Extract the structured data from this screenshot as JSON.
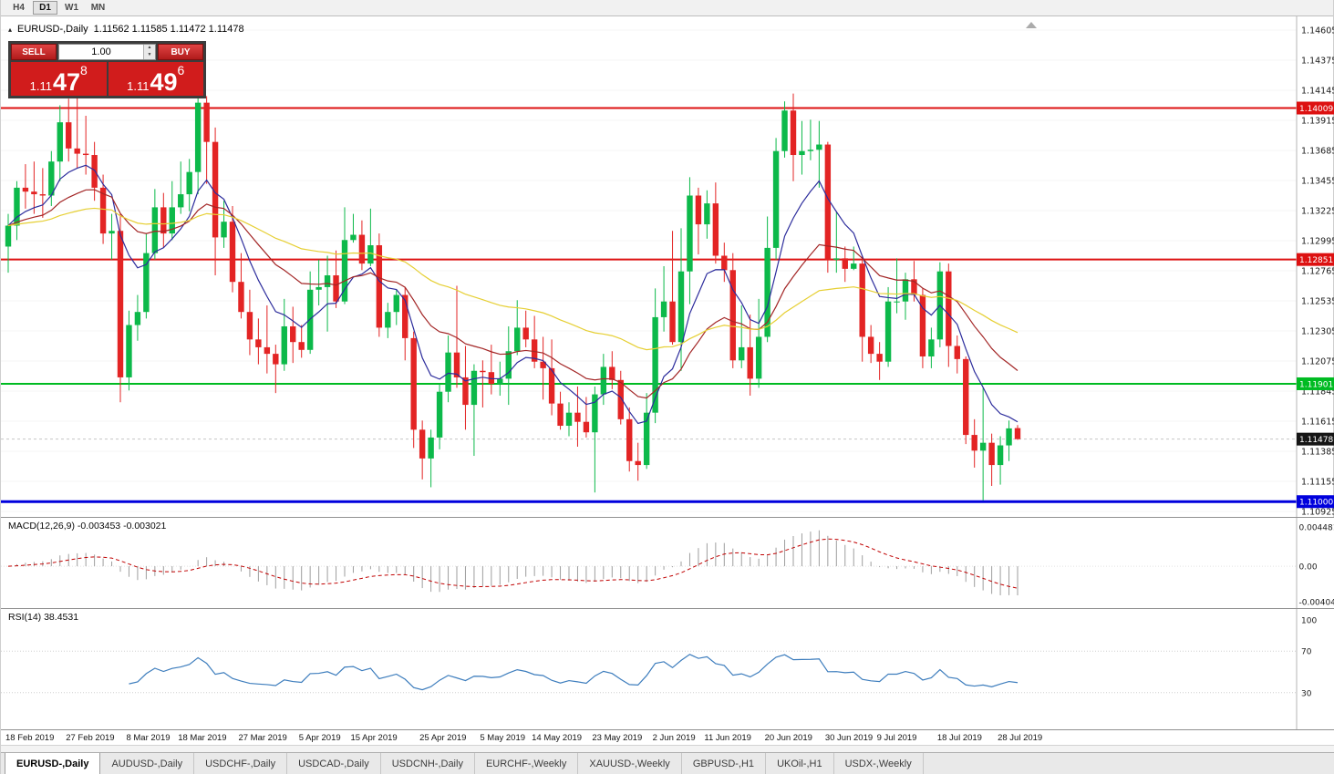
{
  "toolbar": {
    "timeframes": [
      {
        "label": "H4",
        "active": false
      },
      {
        "label": "D1",
        "active": true
      },
      {
        "label": "W1",
        "active": false
      },
      {
        "label": "MN",
        "active": false
      }
    ]
  },
  "icons": {
    "collapse_arrow": "▴",
    "spinner_up": "▲",
    "spinner_down": "▼"
  },
  "chart": {
    "symbol_title": "EURUSD-,Daily",
    "ohlc_readout": "1.11562 1.11585 1.11472 1.11478",
    "trade_panel": {
      "sell_label": "SELL",
      "buy_label": "BUY",
      "volume": "1.00",
      "sell_price": {
        "prefix": "1.11",
        "big": "47",
        "sup": "8"
      },
      "buy_price": {
        "prefix": "1.11",
        "big": "49",
        "sup": "6"
      }
    },
    "y_axis_labels": [
      "1.14605",
      "1.14375",
      "1.14145",
      "1.13915",
      "1.13685",
      "1.13455",
      "1.13225",
      "1.12995",
      "1.12765",
      "1.12535",
      "1.12305",
      "1.12075",
      "1.11845",
      "1.11615",
      "1.11385",
      "1.11155",
      "1.10925"
    ],
    "x_axis_labels": [
      {
        "label": "18 Feb 2019",
        "index": 0
      },
      {
        "label": "27 Feb 2019",
        "index": 7
      },
      {
        "label": "8 Mar 2019",
        "index": 14
      },
      {
        "label": "18 Mar 2019",
        "index": 20
      },
      {
        "label": "27 Mar 2019",
        "index": 27
      },
      {
        "label": "5 Apr 2019",
        "index": 34
      },
      {
        "label": "15 Apr 2019",
        "index": 40
      },
      {
        "label": "25 Apr 2019",
        "index": 48
      },
      {
        "label": "5 May 2019",
        "index": 55
      },
      {
        "label": "14 May 2019",
        "index": 61
      },
      {
        "label": "23 May 2019",
        "index": 68
      },
      {
        "label": "2 Jun 2019",
        "index": 75
      },
      {
        "label": "11 Jun 2019",
        "index": 81
      },
      {
        "label": "20 Jun 2019",
        "index": 88
      },
      {
        "label": "30 Jun 2019",
        "index": 95
      },
      {
        "label": "9 Jul 2019",
        "index": 101
      },
      {
        "label": "18 Jul 2019",
        "index": 108
      },
      {
        "label": "28 Jul 2019",
        "index": 115
      }
    ],
    "levels": [
      {
        "price": 1.14009,
        "label": "1.14009",
        "color": "#dd1111",
        "width": 2
      },
      {
        "price": 1.12851,
        "label": "1.12851",
        "color": "#dd1111",
        "width": 2
      },
      {
        "price": 1.11901,
        "label": "1.11901",
        "color": "#00bb22",
        "width": 2
      },
      {
        "price": 1.11,
        "label": "1.11000",
        "color": "#0000dd",
        "width": 3
      }
    ],
    "current_price": {
      "price": 1.11478,
      "label": "1.11478",
      "tag_color": "#161616"
    }
  },
  "macd_panel": {
    "label": "MACD(12,26,9) -0.003453 -0.003021",
    "axis": [
      {
        "label": "0.004481",
        "value": 0.004481
      },
      {
        "label": "0.00",
        "value": 0
      },
      {
        "label": "-0.004048",
        "value": -0.004048
      }
    ],
    "params": {
      "fast": 12,
      "slow": 26,
      "signal": 9
    }
  },
  "rsi_panel": {
    "label": "RSI(14) 38.4531",
    "period": 14,
    "levels": [
      70,
      30
    ],
    "axis": [
      {
        "label": "100",
        "value": 100
      },
      {
        "label": "70",
        "value": 70
      },
      {
        "label": "30",
        "value": 30
      }
    ]
  },
  "tabs": [
    {
      "label": "EURUSD-,Daily",
      "active": true
    },
    {
      "label": "AUDUSD-,Daily",
      "active": false
    },
    {
      "label": "USDCHF-,Daily",
      "active": false
    },
    {
      "label": "USDCAD-,Daily",
      "active": false
    },
    {
      "label": "USDCNH-,Daily",
      "active": false
    },
    {
      "label": "EURCHF-,Weekly",
      "active": false
    },
    {
      "label": "XAUUSD-,Weekly",
      "active": false
    },
    {
      "label": "GBPUSD-,H1",
      "active": false
    },
    {
      "label": "UKOil-,H1",
      "active": false
    },
    {
      "label": "USDX-,Weekly",
      "active": false
    }
  ],
  "chart_data": {
    "type": "candlestick",
    "symbol": "EURUSD-",
    "timeframe": "Daily",
    "price_axis": {
      "min": 1.10925,
      "max": 1.14605
    },
    "moving_averages": [
      {
        "type": "ema",
        "period": 8,
        "color": "#2c2c9c"
      },
      {
        "type": "ema",
        "period": 21,
        "color": "#a32626"
      },
      {
        "type": "ema",
        "period": 55,
        "color": "#e6cf33"
      }
    ],
    "candles": [
      [
        1.1295,
        1.132,
        1.1275,
        1.1311
      ],
      [
        1.1311,
        1.1345,
        1.13,
        1.134
      ],
      [
        1.134,
        1.1358,
        1.1324,
        1.1337
      ],
      [
        1.1337,
        1.136,
        1.132,
        1.1335
      ],
      [
        1.1335,
        1.1355,
        1.1317,
        1.1334
      ],
      [
        1.1334,
        1.1368,
        1.1326,
        1.136
      ],
      [
        1.136,
        1.1403,
        1.1345,
        1.139
      ],
      [
        1.139,
        1.1408,
        1.136,
        1.137
      ],
      [
        1.137,
        1.141,
        1.1355,
        1.1366
      ],
      [
        1.1366,
        1.1395,
        1.135,
        1.1365
      ],
      [
        1.1365,
        1.1375,
        1.133,
        1.134
      ],
      [
        1.134,
        1.135,
        1.1297,
        1.1305
      ],
      [
        1.1305,
        1.132,
        1.1285,
        1.1307
      ],
      [
        1.1307,
        1.132,
        1.1176,
        1.1195
      ],
      [
        1.1195,
        1.1246,
        1.1185,
        1.1235
      ],
      [
        1.1235,
        1.1258,
        1.1223,
        1.1245
      ],
      [
        1.1245,
        1.1305,
        1.124,
        1.129
      ],
      [
        1.129,
        1.1339,
        1.1285,
        1.1325
      ],
      [
        1.1325,
        1.1336,
        1.1294,
        1.1305
      ],
      [
        1.1305,
        1.1345,
        1.13,
        1.1325
      ],
      [
        1.1325,
        1.136,
        1.132,
        1.1335
      ],
      [
        1.1335,
        1.1362,
        1.1322,
        1.1352
      ],
      [
        1.1352,
        1.1412,
        1.1335,
        1.1405
      ],
      [
        1.1405,
        1.141,
        1.1343,
        1.1375
      ],
      [
        1.1375,
        1.1386,
        1.1273,
        1.1302
      ],
      [
        1.1302,
        1.133,
        1.1294,
        1.1314
      ],
      [
        1.1314,
        1.1326,
        1.126,
        1.1268
      ],
      [
        1.1268,
        1.129,
        1.124,
        1.1245
      ],
      [
        1.1245,
        1.1262,
        1.1212,
        1.1224
      ],
      [
        1.1224,
        1.124,
        1.1205,
        1.1218
      ],
      [
        1.1218,
        1.125,
        1.1198,
        1.1213
      ],
      [
        1.1213,
        1.122,
        1.1183,
        1.1205
      ],
      [
        1.1205,
        1.1255,
        1.12,
        1.1234
      ],
      [
        1.1234,
        1.1249,
        1.1206,
        1.1222
      ],
      [
        1.1222,
        1.1235,
        1.121,
        1.1216
      ],
      [
        1.1216,
        1.1276,
        1.1213,
        1.1262
      ],
      [
        1.1262,
        1.1285,
        1.125,
        1.1264
      ],
      [
        1.1264,
        1.1288,
        1.123,
        1.1273
      ],
      [
        1.1273,
        1.1292,
        1.1248,
        1.1253
      ],
      [
        1.1253,
        1.1325,
        1.1251,
        1.13
      ],
      [
        1.13,
        1.132,
        1.1298,
        1.1304
      ],
      [
        1.1304,
        1.1315,
        1.1277,
        1.1282
      ],
      [
        1.1282,
        1.1324,
        1.128,
        1.1296
      ],
      [
        1.1296,
        1.1305,
        1.1226,
        1.1233
      ],
      [
        1.1233,
        1.1252,
        1.1225,
        1.1245
      ],
      [
        1.1245,
        1.1262,
        1.1235,
        1.1258
      ],
      [
        1.1258,
        1.1264,
        1.1208,
        1.1225
      ],
      [
        1.1225,
        1.123,
        1.1141,
        1.1155
      ],
      [
        1.1155,
        1.1162,
        1.1117,
        1.1133
      ],
      [
        1.1133,
        1.1155,
        1.1111,
        1.1149
      ],
      [
        1.1149,
        1.119,
        1.114,
        1.1184
      ],
      [
        1.1184,
        1.1227,
        1.1176,
        1.1214
      ],
      [
        1.1214,
        1.1265,
        1.1187,
        1.1195
      ],
      [
        1.1195,
        1.1219,
        1.1155,
        1.1174
      ],
      [
        1.1174,
        1.1205,
        1.1135,
        1.12
      ],
      [
        1.12,
        1.1208,
        1.1172,
        1.1199
      ],
      [
        1.1199,
        1.122,
        1.1182,
        1.119
      ],
      [
        1.119,
        1.1207,
        1.1181,
        1.1194
      ],
      [
        1.1194,
        1.1234,
        1.1174,
        1.1215
      ],
      [
        1.1215,
        1.1254,
        1.1212,
        1.1233
      ],
      [
        1.1233,
        1.1246,
        1.1218,
        1.1224
      ],
      [
        1.1224,
        1.1242,
        1.1202,
        1.1207
      ],
      [
        1.1207,
        1.1226,
        1.1178,
        1.1202
      ],
      [
        1.1202,
        1.1224,
        1.1166,
        1.1175
      ],
      [
        1.1175,
        1.1184,
        1.1155,
        1.1158
      ],
      [
        1.1158,
        1.1176,
        1.115,
        1.1168
      ],
      [
        1.1168,
        1.1188,
        1.1142,
        1.1161
      ],
      [
        1.1161,
        1.118,
        1.1149,
        1.1153
      ],
      [
        1.1153,
        1.1188,
        1.1107,
        1.1182
      ],
      [
        1.1182,
        1.1213,
        1.1174,
        1.1203
      ],
      [
        1.1203,
        1.1215,
        1.1186,
        1.1193
      ],
      [
        1.1193,
        1.12,
        1.1159,
        1.1163
      ],
      [
        1.1163,
        1.1172,
        1.1123,
        1.1131
      ],
      [
        1.1131,
        1.1145,
        1.1116,
        1.1128
      ],
      [
        1.1128,
        1.1183,
        1.1125,
        1.1168
      ],
      [
        1.1168,
        1.1263,
        1.116,
        1.1241
      ],
      [
        1.1241,
        1.128,
        1.123,
        1.1253
      ],
      [
        1.1253,
        1.1307,
        1.122,
        1.1222
      ],
      [
        1.1222,
        1.1309,
        1.12,
        1.1276
      ],
      [
        1.1276,
        1.1348,
        1.1251,
        1.1334
      ],
      [
        1.1334,
        1.134,
        1.1289,
        1.1312
      ],
      [
        1.1312,
        1.1338,
        1.1301,
        1.1328
      ],
      [
        1.1328,
        1.1344,
        1.1282,
        1.1288
      ],
      [
        1.1288,
        1.1298,
        1.1268,
        1.1277
      ],
      [
        1.1277,
        1.129,
        1.1202,
        1.1208
      ],
      [
        1.1208,
        1.125,
        1.1202,
        1.1218
      ],
      [
        1.1218,
        1.1243,
        1.1181,
        1.1194
      ],
      [
        1.1194,
        1.1255,
        1.1187,
        1.1226
      ],
      [
        1.1226,
        1.1318,
        1.1222,
        1.1294
      ],
      [
        1.1294,
        1.1378,
        1.1285,
        1.1368
      ],
      [
        1.1368,
        1.1406,
        1.1363,
        1.1399
      ],
      [
        1.1399,
        1.1412,
        1.1345,
        1.1365
      ],
      [
        1.1365,
        1.1391,
        1.135,
        1.1368
      ],
      [
        1.1368,
        1.1392,
        1.1361,
        1.1369
      ],
      [
        1.1369,
        1.1391,
        1.134,
        1.1373
      ],
      [
        1.1373,
        1.1375,
        1.1275,
        1.1285
      ],
      [
        1.1285,
        1.1322,
        1.1275,
        1.1286
      ],
      [
        1.1286,
        1.1295,
        1.1268,
        1.1278
      ],
      [
        1.1278,
        1.1295,
        1.1277,
        1.1282
      ],
      [
        1.1282,
        1.1288,
        1.1207,
        1.1226
      ],
      [
        1.1226,
        1.1235,
        1.1206,
        1.1213
      ],
      [
        1.1213,
        1.1222,
        1.1193,
        1.1207
      ],
      [
        1.1207,
        1.1264,
        1.1203,
        1.1253
      ],
      [
        1.1253,
        1.1286,
        1.1244,
        1.1253
      ],
      [
        1.1253,
        1.1275,
        1.1239,
        1.127
      ],
      [
        1.127,
        1.1284,
        1.1253,
        1.1258
      ],
      [
        1.1258,
        1.1263,
        1.1202,
        1.1211
      ],
      [
        1.1211,
        1.1233,
        1.1202,
        1.1224
      ],
      [
        1.1224,
        1.1283,
        1.1218,
        1.1276
      ],
      [
        1.1276,
        1.1282,
        1.1203,
        1.1219
      ],
      [
        1.1219,
        1.1227,
        1.1198,
        1.1209
      ],
      [
        1.1209,
        1.1211,
        1.1144,
        1.1151
      ],
      [
        1.1151,
        1.1163,
        1.1126,
        1.1139
      ],
      [
        1.1139,
        1.1187,
        1.1101,
        1.1145
      ],
      [
        1.1145,
        1.1152,
        1.1112,
        1.1128
      ],
      [
        1.1128,
        1.115,
        1.1113,
        1.1143
      ],
      [
        1.1143,
        1.1162,
        1.1131,
        1.1156
      ],
      [
        1.11562,
        1.11585,
        1.11472,
        1.11478
      ]
    ]
  }
}
